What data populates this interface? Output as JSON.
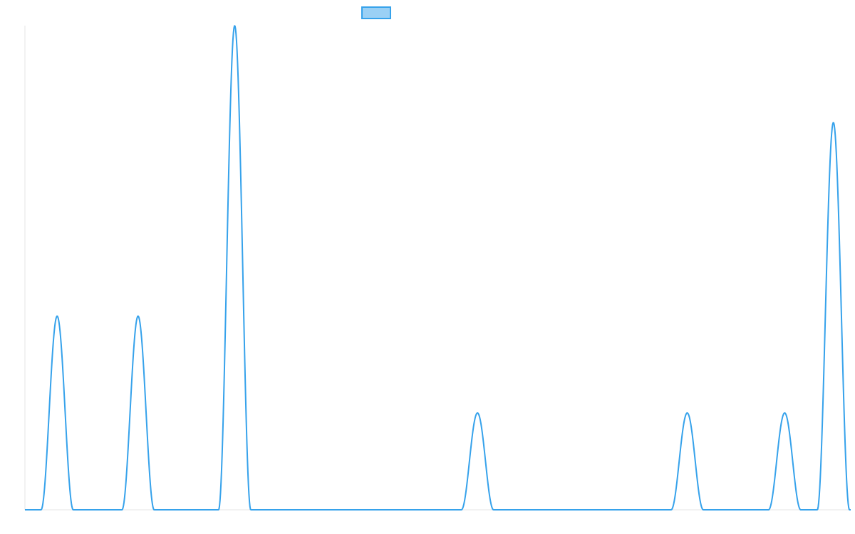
{
  "chart_data": {
    "type": "line",
    "title": "",
    "xlabel": "",
    "ylabel": "",
    "legend": {
      "placement": "top-center",
      "entries": [
        {
          "label": ""
        }
      ]
    },
    "grid": false,
    "xlim": [
      0,
      1
    ],
    "ylim": [
      0,
      1
    ],
    "series": [
      {
        "name": "",
        "color": "#36A2EB",
        "fill_color": "#9AD0F5",
        "peaks": [
          {
            "x_center": 0.039,
            "half_width": 0.0195,
            "y": 0.4
          },
          {
            "x_center": 0.137,
            "half_width": 0.0195,
            "y": 0.4
          },
          {
            "x_center": 0.254,
            "half_width": 0.0195,
            "y": 1.0
          },
          {
            "x_center": 0.548,
            "half_width": 0.0195,
            "y": 0.2
          },
          {
            "x_center": 0.802,
            "half_width": 0.0195,
            "y": 0.2
          },
          {
            "x_center": 0.92,
            "half_width": 0.0195,
            "y": 0.2
          },
          {
            "x_center": 0.979,
            "half_width": 0.0195,
            "y": 0.8
          }
        ],
        "baseline_y": 0
      }
    ]
  }
}
